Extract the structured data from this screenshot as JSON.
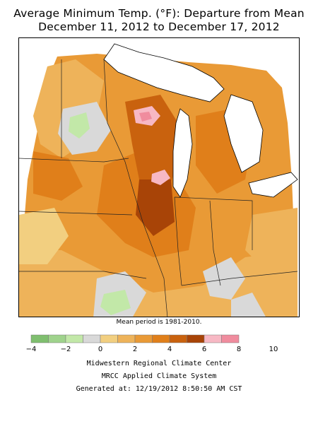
{
  "header": {
    "title_line1": "Average Minimum Temp. (°F): Departure from Mean",
    "title_line2": "December 11, 2012 to December 17, 2012"
  },
  "map": {
    "note": "Mean period is 1981-2010."
  },
  "legend": {
    "colors": [
      "#7fbf6f",
      "#9fd38c",
      "#c2e8a8",
      "#d9d9d9",
      "#f2cf80",
      "#eeb35a",
      "#e99a36",
      "#e07f1a",
      "#c9620e",
      "#a84407",
      "#f7b8c4",
      "#f08c9e"
    ],
    "ticks": [
      "−4",
      "−2",
      "0",
      "2",
      "4",
      "6",
      "8",
      "10"
    ]
  },
  "footer": {
    "line1": "Midwestern Regional Climate Center",
    "line2": "MRCC Applied Climate System",
    "line3": "Generated at: 12/19/2012 8:50:50 AM CST"
  }
}
